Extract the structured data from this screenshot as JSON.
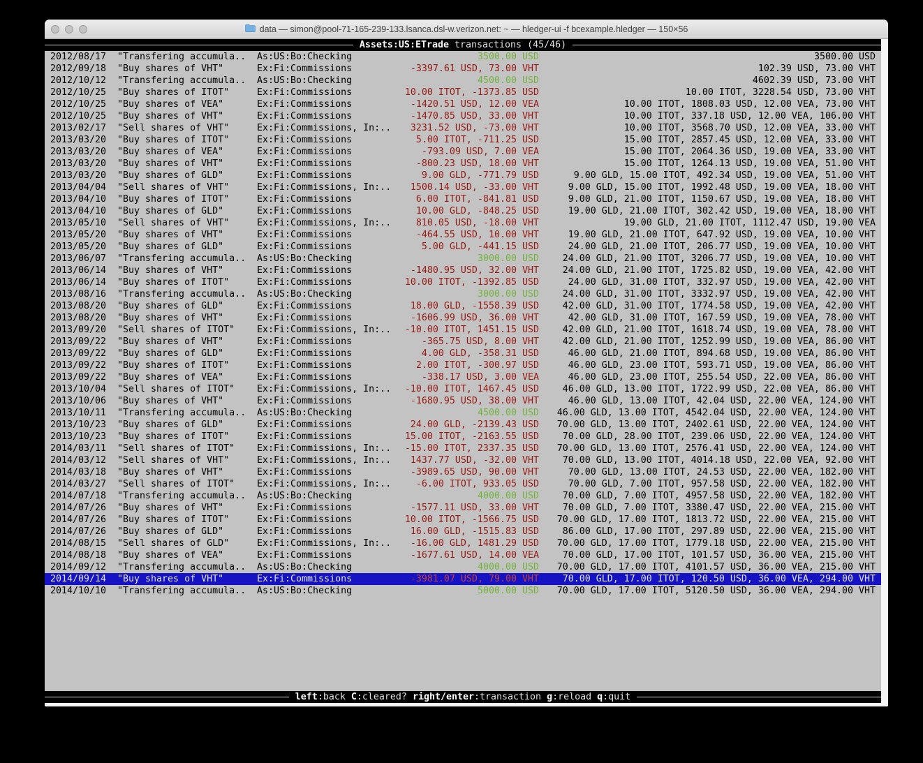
{
  "window": {
    "title": "data — simon@pool-71-165-239-133.lsanca.dsl-w.verizon.net: ~ — hledger-ui -f bcexample.hledger — 150×56"
  },
  "header": {
    "account": "Assets:US:ETrade",
    "label": "transactions (45/46)"
  },
  "footer": {
    "hints": [
      {
        "key": "left",
        "desc": ":back"
      },
      {
        "key": "C",
        "desc": ":cleared?"
      },
      {
        "key": "right/enter",
        "desc": ":transaction"
      },
      {
        "key": "g",
        "desc": ":reload"
      },
      {
        "key": "q",
        "desc": ":quit"
      }
    ]
  },
  "colors": {
    "terminal_bg": "#c3c3c3",
    "positive_green": "#72b33c",
    "negative_red": "#961911",
    "selection_blue": "#1513c4",
    "selection_red": "#cd4233"
  },
  "selected_index": 44,
  "transactions": [
    {
      "date": "2012/08/17",
      "description": "\"Transfering accumula..",
      "accounts": "As:US:Bo:Checking",
      "amount": "3500.00 USD",
      "amount_color": "green",
      "balance": "3500.00 USD"
    },
    {
      "date": "2012/09/18",
      "description": "\"Buy shares of VHT\"",
      "accounts": "Ex:Fi:Commissions",
      "amount": "-3397.61 USD, 73.00 VHT",
      "amount_color": "red",
      "balance": "102.39 USD, 73.00 VHT"
    },
    {
      "date": "2012/10/12",
      "description": "\"Transfering accumula..",
      "accounts": "As:US:Bo:Checking",
      "amount": "4500.00 USD",
      "amount_color": "green",
      "balance": "4602.39 USD, 73.00 VHT"
    },
    {
      "date": "2012/10/25",
      "description": "\"Buy shares of ITOT\"",
      "accounts": "Ex:Fi:Commissions",
      "amount": "10.00 ITOT, -1373.85 USD",
      "amount_color": "red",
      "balance": "10.00 ITOT, 3228.54 USD, 73.00 VHT"
    },
    {
      "date": "2012/10/25",
      "description": "\"Buy shares of VEA\"",
      "accounts": "Ex:Fi:Commissions",
      "amount": "-1420.51 USD, 12.00 VEA",
      "amount_color": "red",
      "balance": "10.00 ITOT, 1808.03 USD, 12.00 VEA, 73.00 VHT"
    },
    {
      "date": "2012/10/25",
      "description": "\"Buy shares of VHT\"",
      "accounts": "Ex:Fi:Commissions",
      "amount": "-1470.85 USD, 33.00 VHT",
      "amount_color": "red",
      "balance": "10.00 ITOT, 337.18 USD, 12.00 VEA, 106.00 VHT"
    },
    {
      "date": "2013/02/17",
      "description": "\"Sell shares of VHT\"",
      "accounts": "Ex:Fi:Commissions, In:..",
      "amount": "3231.52 USD, -73.00 VHT",
      "amount_color": "red",
      "balance": "10.00 ITOT, 3568.70 USD, 12.00 VEA, 33.00 VHT"
    },
    {
      "date": "2013/03/20",
      "description": "\"Buy shares of ITOT\"",
      "accounts": "Ex:Fi:Commissions",
      "amount": "5.00 ITOT, -711.25 USD",
      "amount_color": "red",
      "balance": "15.00 ITOT, 2857.45 USD, 12.00 VEA, 33.00 VHT"
    },
    {
      "date": "2013/03/20",
      "description": "\"Buy shares of VEA\"",
      "accounts": "Ex:Fi:Commissions",
      "amount": "-793.09 USD, 7.00 VEA",
      "amount_color": "red",
      "balance": "15.00 ITOT, 2064.36 USD, 19.00 VEA, 33.00 VHT"
    },
    {
      "date": "2013/03/20",
      "description": "\"Buy shares of VHT\"",
      "accounts": "Ex:Fi:Commissions",
      "amount": "-800.23 USD, 18.00 VHT",
      "amount_color": "red",
      "balance": "15.00 ITOT, 1264.13 USD, 19.00 VEA, 51.00 VHT"
    },
    {
      "date": "2013/03/20",
      "description": "\"Buy shares of GLD\"",
      "accounts": "Ex:Fi:Commissions",
      "amount": "9.00 GLD, -771.79 USD",
      "amount_color": "red",
      "balance": "9.00 GLD, 15.00 ITOT, 492.34 USD, 19.00 VEA, 51.00 VHT"
    },
    {
      "date": "2013/04/04",
      "description": "\"Sell shares of VHT\"",
      "accounts": "Ex:Fi:Commissions, In:..",
      "amount": "1500.14 USD, -33.00 VHT",
      "amount_color": "red",
      "balance": "9.00 GLD, 15.00 ITOT, 1992.48 USD, 19.00 VEA, 18.00 VHT"
    },
    {
      "date": "2013/04/10",
      "description": "\"Buy shares of ITOT\"",
      "accounts": "Ex:Fi:Commissions",
      "amount": "6.00 ITOT, -841.81 USD",
      "amount_color": "red",
      "balance": "9.00 GLD, 21.00 ITOT, 1150.67 USD, 19.00 VEA, 18.00 VHT"
    },
    {
      "date": "2013/04/10",
      "description": "\"Buy shares of GLD\"",
      "accounts": "Ex:Fi:Commissions",
      "amount": "10.00 GLD, -848.25 USD",
      "amount_color": "red",
      "balance": "19.00 GLD, 21.00 ITOT, 302.42 USD, 19.00 VEA, 18.00 VHT"
    },
    {
      "date": "2013/05/10",
      "description": "\"Sell shares of VHT\"",
      "accounts": "Ex:Fi:Commissions, In:..",
      "amount": "810.05 USD, -18.00 VHT",
      "amount_color": "red",
      "balance": "19.00 GLD, 21.00 ITOT, 1112.47 USD, 19.00 VEA"
    },
    {
      "date": "2013/05/20",
      "description": "\"Buy shares of VHT\"",
      "accounts": "Ex:Fi:Commissions",
      "amount": "-464.55 USD, 10.00 VHT",
      "amount_color": "red",
      "balance": "19.00 GLD, 21.00 ITOT, 647.92 USD, 19.00 VEA, 10.00 VHT"
    },
    {
      "date": "2013/05/20",
      "description": "\"Buy shares of GLD\"",
      "accounts": "Ex:Fi:Commissions",
      "amount": "5.00 GLD, -441.15 USD",
      "amount_color": "red",
      "balance": "24.00 GLD, 21.00 ITOT, 206.77 USD, 19.00 VEA, 10.00 VHT"
    },
    {
      "date": "2013/06/07",
      "description": "\"Transfering accumula..",
      "accounts": "As:US:Bo:Checking",
      "amount": "3000.00 USD",
      "amount_color": "green",
      "balance": "24.00 GLD, 21.00 ITOT, 3206.77 USD, 19.00 VEA, 10.00 VHT"
    },
    {
      "date": "2013/06/14",
      "description": "\"Buy shares of VHT\"",
      "accounts": "Ex:Fi:Commissions",
      "amount": "-1480.95 USD, 32.00 VHT",
      "amount_color": "red",
      "balance": "24.00 GLD, 21.00 ITOT, 1725.82 USD, 19.00 VEA, 42.00 VHT"
    },
    {
      "date": "2013/06/14",
      "description": "\"Buy shares of ITOT\"",
      "accounts": "Ex:Fi:Commissions",
      "amount": "10.00 ITOT, -1392.85 USD",
      "amount_color": "red",
      "balance": "24.00 GLD, 31.00 ITOT, 332.97 USD, 19.00 VEA, 42.00 VHT"
    },
    {
      "date": "2013/08/16",
      "description": "\"Transfering accumula..",
      "accounts": "As:US:Bo:Checking",
      "amount": "3000.00 USD",
      "amount_color": "green",
      "balance": "24.00 GLD, 31.00 ITOT, 3332.97 USD, 19.00 VEA, 42.00 VHT"
    },
    {
      "date": "2013/08/20",
      "description": "\"Buy shares of GLD\"",
      "accounts": "Ex:Fi:Commissions",
      "amount": "18.00 GLD, -1558.39 USD",
      "amount_color": "red",
      "balance": "42.00 GLD, 31.00 ITOT, 1774.58 USD, 19.00 VEA, 42.00 VHT"
    },
    {
      "date": "2013/08/20",
      "description": "\"Buy shares of VHT\"",
      "accounts": "Ex:Fi:Commissions",
      "amount": "-1606.99 USD, 36.00 VHT",
      "amount_color": "red",
      "balance": "42.00 GLD, 31.00 ITOT, 167.59 USD, 19.00 VEA, 78.00 VHT"
    },
    {
      "date": "2013/09/20",
      "description": "\"Sell shares of ITOT\"",
      "accounts": "Ex:Fi:Commissions, In:..",
      "amount": "-10.00 ITOT, 1451.15 USD",
      "amount_color": "red",
      "balance": "42.00 GLD, 21.00 ITOT, 1618.74 USD, 19.00 VEA, 78.00 VHT"
    },
    {
      "date": "2013/09/22",
      "description": "\"Buy shares of VHT\"",
      "accounts": "Ex:Fi:Commissions",
      "amount": "-365.75 USD, 8.00 VHT",
      "amount_color": "red",
      "balance": "42.00 GLD, 21.00 ITOT, 1252.99 USD, 19.00 VEA, 86.00 VHT"
    },
    {
      "date": "2013/09/22",
      "description": "\"Buy shares of GLD\"",
      "accounts": "Ex:Fi:Commissions",
      "amount": "4.00 GLD, -358.31 USD",
      "amount_color": "red",
      "balance": "46.00 GLD, 21.00 ITOT, 894.68 USD, 19.00 VEA, 86.00 VHT"
    },
    {
      "date": "2013/09/22",
      "description": "\"Buy shares of ITOT\"",
      "accounts": "Ex:Fi:Commissions",
      "amount": "2.00 ITOT, -300.97 USD",
      "amount_color": "red",
      "balance": "46.00 GLD, 23.00 ITOT, 593.71 USD, 19.00 VEA, 86.00 VHT"
    },
    {
      "date": "2013/09/22",
      "description": "\"Buy shares of VEA\"",
      "accounts": "Ex:Fi:Commissions",
      "amount": "-338.17 USD, 3.00 VEA",
      "amount_color": "red",
      "balance": "46.00 GLD, 23.00 ITOT, 255.54 USD, 22.00 VEA, 86.00 VHT"
    },
    {
      "date": "2013/10/04",
      "description": "\"Sell shares of ITOT\"",
      "accounts": "Ex:Fi:Commissions, In:..",
      "amount": "-10.00 ITOT, 1467.45 USD",
      "amount_color": "red",
      "balance": "46.00 GLD, 13.00 ITOT, 1722.99 USD, 22.00 VEA, 86.00 VHT"
    },
    {
      "date": "2013/10/06",
      "description": "\"Buy shares of VHT\"",
      "accounts": "Ex:Fi:Commissions",
      "amount": "-1680.95 USD, 38.00 VHT",
      "amount_color": "red",
      "balance": "46.00 GLD, 13.00 ITOT, 42.04 USD, 22.00 VEA, 124.00 VHT"
    },
    {
      "date": "2013/10/11",
      "description": "\"Transfering accumula..",
      "accounts": "As:US:Bo:Checking",
      "amount": "4500.00 USD",
      "amount_color": "green",
      "balance": "46.00 GLD, 13.00 ITOT, 4542.04 USD, 22.00 VEA, 124.00 VHT"
    },
    {
      "date": "2013/10/23",
      "description": "\"Buy shares of GLD\"",
      "accounts": "Ex:Fi:Commissions",
      "amount": "24.00 GLD, -2139.43 USD",
      "amount_color": "red",
      "balance": "70.00 GLD, 13.00 ITOT, 2402.61 USD, 22.00 VEA, 124.00 VHT"
    },
    {
      "date": "2013/10/23",
      "description": "\"Buy shares of ITOT\"",
      "accounts": "Ex:Fi:Commissions",
      "amount": "15.00 ITOT, -2163.55 USD",
      "amount_color": "red",
      "balance": "70.00 GLD, 28.00 ITOT, 239.06 USD, 22.00 VEA, 124.00 VHT"
    },
    {
      "date": "2014/03/11",
      "description": "\"Sell shares of ITOT\"",
      "accounts": "Ex:Fi:Commissions, In:..",
      "amount": "-15.00 ITOT, 2337.35 USD",
      "amount_color": "red",
      "balance": "70.00 GLD, 13.00 ITOT, 2576.41 USD, 22.00 VEA, 124.00 VHT"
    },
    {
      "date": "2014/03/12",
      "description": "\"Sell shares of VHT\"",
      "accounts": "Ex:Fi:Commissions, In:..",
      "amount": "1437.77 USD, -32.00 VHT",
      "amount_color": "red",
      "balance": "70.00 GLD, 13.00 ITOT, 4014.18 USD, 22.00 VEA, 92.00 VHT"
    },
    {
      "date": "2014/03/18",
      "description": "\"Buy shares of VHT\"",
      "accounts": "Ex:Fi:Commissions",
      "amount": "-3989.65 USD, 90.00 VHT",
      "amount_color": "red",
      "balance": "70.00 GLD, 13.00 ITOT, 24.53 USD, 22.00 VEA, 182.00 VHT"
    },
    {
      "date": "2014/03/27",
      "description": "\"Sell shares of ITOT\"",
      "accounts": "Ex:Fi:Commissions, In:..",
      "amount": "-6.00 ITOT, 933.05 USD",
      "amount_color": "red",
      "balance": "70.00 GLD, 7.00 ITOT, 957.58 USD, 22.00 VEA, 182.00 VHT"
    },
    {
      "date": "2014/07/18",
      "description": "\"Transfering accumula..",
      "accounts": "As:US:Bo:Checking",
      "amount": "4000.00 USD",
      "amount_color": "green",
      "balance": "70.00 GLD, 7.00 ITOT, 4957.58 USD, 22.00 VEA, 182.00 VHT"
    },
    {
      "date": "2014/07/26",
      "description": "\"Buy shares of VHT\"",
      "accounts": "Ex:Fi:Commissions",
      "amount": "-1577.11 USD, 33.00 VHT",
      "amount_color": "red",
      "balance": "70.00 GLD, 7.00 ITOT, 3380.47 USD, 22.00 VEA, 215.00 VHT"
    },
    {
      "date": "2014/07/26",
      "description": "\"Buy shares of ITOT\"",
      "accounts": "Ex:Fi:Commissions",
      "amount": "10.00 ITOT, -1566.75 USD",
      "amount_color": "red",
      "balance": "70.00 GLD, 17.00 ITOT, 1813.72 USD, 22.00 VEA, 215.00 VHT"
    },
    {
      "date": "2014/07/26",
      "description": "\"Buy shares of GLD\"",
      "accounts": "Ex:Fi:Commissions",
      "amount": "16.00 GLD, -1515.83 USD",
      "amount_color": "red",
      "balance": "86.00 GLD, 17.00 ITOT, 297.89 USD, 22.00 VEA, 215.00 VHT"
    },
    {
      "date": "2014/08/15",
      "description": "\"Sell shares of GLD\"",
      "accounts": "Ex:Fi:Commissions, In:..",
      "amount": "-16.00 GLD, 1481.29 USD",
      "amount_color": "red",
      "balance": "70.00 GLD, 17.00 ITOT, 1779.18 USD, 22.00 VEA, 215.00 VHT"
    },
    {
      "date": "2014/08/18",
      "description": "\"Buy shares of VEA\"",
      "accounts": "Ex:Fi:Commissions",
      "amount": "-1677.61 USD, 14.00 VEA",
      "amount_color": "red",
      "balance": "70.00 GLD, 17.00 ITOT, 101.57 USD, 36.00 VEA, 215.00 VHT"
    },
    {
      "date": "2014/09/12",
      "description": "\"Transfering accumula..",
      "accounts": "As:US:Bo:Checking",
      "amount": "4000.00 USD",
      "amount_color": "green",
      "balance": "70.00 GLD, 17.00 ITOT, 4101.57 USD, 36.00 VEA, 215.00 VHT"
    },
    {
      "date": "2014/09/14",
      "description": "\"Buy shares of VHT\"",
      "accounts": "Ex:Fi:Commissions",
      "amount": "-3981.07 USD, 79.00 VHT",
      "amount_color": "red",
      "balance": "70.00 GLD, 17.00 ITOT, 120.50 USD, 36.00 VEA, 294.00 VHT"
    },
    {
      "date": "2014/10/10",
      "description": "\"Transfering accumula..",
      "accounts": "As:US:Bo:Checking",
      "amount": "5000.00 USD",
      "amount_color": "green",
      "balance": "70.00 GLD, 17.00 ITOT, 5120.50 USD, 36.00 VEA, 294.00 VHT"
    }
  ]
}
